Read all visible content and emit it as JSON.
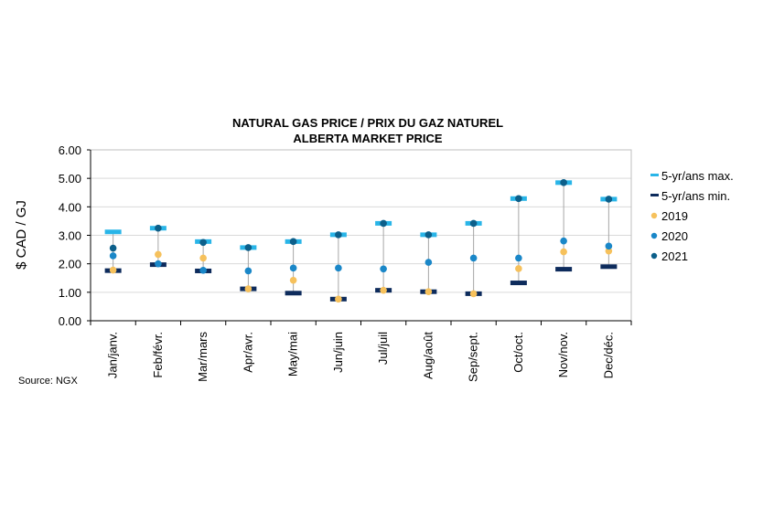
{
  "chart_data": {
    "type": "scatter",
    "title": "NATURAL GAS PRICE / PRIX DU GAZ NATUREL",
    "subtitle": "ALBERTA MARKET PRICE",
    "ylabel": "$ CAD / GJ",
    "xlabel": "",
    "ylim": [
      0,
      6
    ],
    "yticks": [
      "0.00",
      "1.00",
      "2.00",
      "3.00",
      "4.00",
      "5.00",
      "6.00"
    ],
    "grid": true,
    "legend_position": "right",
    "categories": [
      "Jan/janv.",
      "Feb/févr.",
      "Mar/mars",
      "Apr/avr.",
      "May/mai",
      "Jun/juin",
      "Jul/juil",
      "Aug/août",
      "Sep/sept.",
      "Oct/oct.",
      "Nov/nov.",
      "Dec/déc."
    ],
    "range_max": {
      "name": "5-yr/ans max.",
      "color": "#29B5E8",
      "values": [
        3.12,
        3.25,
        2.78,
        2.57,
        2.78,
        3.02,
        3.42,
        3.02,
        3.42,
        4.29,
        4.85,
        4.27
      ]
    },
    "range_min": {
      "name": "5-yr/ans min.",
      "color": "#0D2B5C",
      "values": [
        1.76,
        1.97,
        1.75,
        1.12,
        0.97,
        0.76,
        1.07,
        1.02,
        0.95,
        1.33,
        1.81,
        1.9
      ]
    },
    "series": [
      {
        "name": "2019",
        "color": "#F6C15C",
        "values": [
          1.78,
          2.33,
          2.2,
          1.12,
          1.42,
          0.76,
          1.07,
          1.02,
          0.95,
          1.83,
          2.42,
          2.45
        ]
      },
      {
        "name": "2020",
        "color": "#1A87C8",
        "values": [
          2.28,
          2.0,
          1.77,
          1.75,
          1.85,
          1.85,
          1.82,
          2.05,
          2.2,
          2.2,
          2.8,
          2.62
        ]
      },
      {
        "name": "2021",
        "color": "#0C5F8A",
        "values": [
          2.55,
          3.25,
          2.75,
          2.57,
          2.78,
          3.02,
          3.42,
          3.02,
          3.42,
          4.29,
          4.85,
          4.27
        ]
      }
    ]
  },
  "source": "Source: NGX"
}
